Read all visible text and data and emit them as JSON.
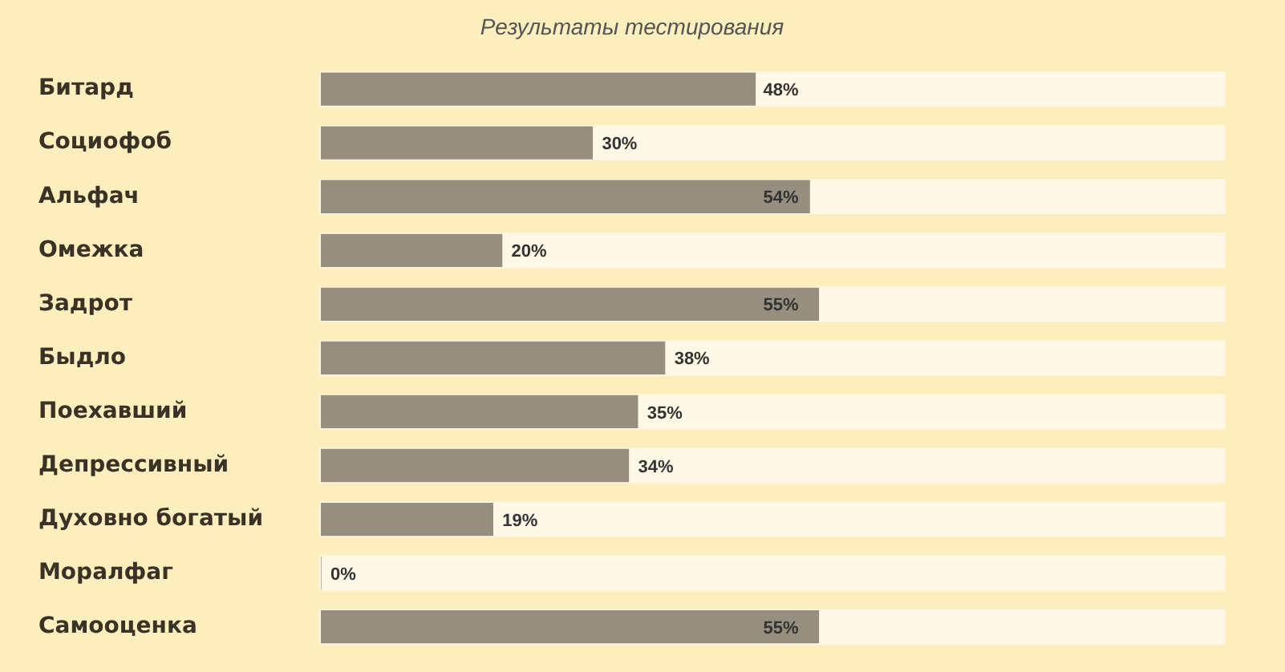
{
  "chart_data": {
    "type": "bar",
    "orientation": "horizontal",
    "title": "Результаты тестирования",
    "categories": [
      "Битард",
      "Социофоб",
      "Альфач",
      "Омежка",
      "Задрот",
      "Быдло",
      "Поехавший",
      "Депрессивный",
      "Духовно богатый",
      "Моралфаг",
      "Самооценка"
    ],
    "values": [
      48,
      30,
      54,
      20,
      55,
      38,
      35,
      34,
      19,
      0,
      55
    ],
    "value_labels": [
      "48%",
      "30%",
      "54%",
      "20%",
      "55%",
      "38%",
      "35%",
      "34%",
      "19%",
      "0%",
      "55%"
    ],
    "color": "#968e7f",
    "xlim": [
      0,
      100
    ],
    "tick_labels": "y"
  }
}
